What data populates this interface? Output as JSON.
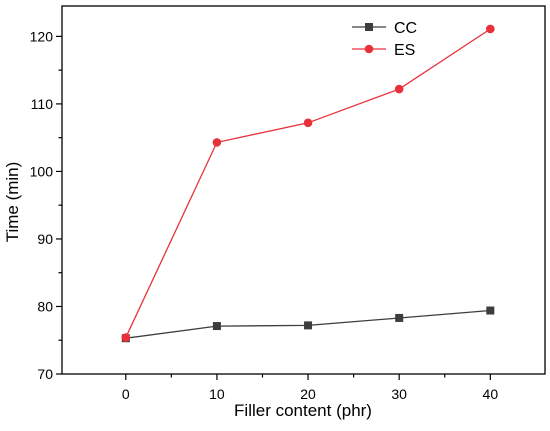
{
  "chart_data": {
    "type": "line",
    "title": "",
    "xlabel": "Filler content (phr)",
    "ylabel": "Time (min)",
    "x": [
      0,
      10,
      20,
      30,
      40
    ],
    "xticks": [
      0,
      10,
      20,
      30,
      40
    ],
    "yticks": [
      70,
      80,
      90,
      100,
      110,
      120
    ],
    "xlim": [
      -7,
      46
    ],
    "ylim": [
      70,
      124.5
    ],
    "grid": false,
    "legend_position": "top-right",
    "series": [
      {
        "name": "CC",
        "values": [
          75.3,
          77.1,
          77.2,
          78.3,
          79.4
        ],
        "color": "#3d3d3d",
        "marker": "square"
      },
      {
        "name": "ES",
        "values": [
          75.4,
          104.3,
          107.2,
          112.2,
          121.1
        ],
        "color": "#e8313a",
        "marker": "circle"
      }
    ]
  }
}
